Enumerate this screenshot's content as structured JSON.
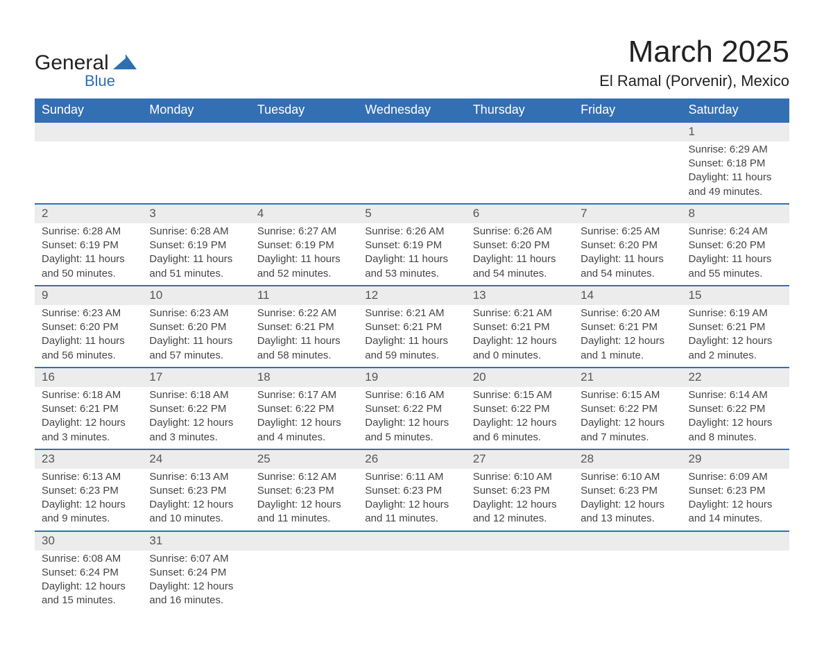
{
  "logo": {
    "text_general": "General",
    "text_blue": "Blue",
    "shape_color": "#2f6eb0"
  },
  "title": "March 2025",
  "location": "El Ramal (Porvenir), Mexico",
  "colors": {
    "header_bg": "#336fb3",
    "header_text": "#ffffff",
    "daynum_bg": "#ececec",
    "divider": "#336fb3",
    "body_text": "#444444",
    "page_bg": "#ffffff"
  },
  "weekdays": [
    "Sunday",
    "Monday",
    "Tuesday",
    "Wednesday",
    "Thursday",
    "Friday",
    "Saturday"
  ],
  "weeks": [
    [
      null,
      null,
      null,
      null,
      null,
      null,
      {
        "n": "1",
        "sr": "Sunrise: 6:29 AM",
        "ss": "Sunset: 6:18 PM",
        "dl1": "Daylight: 11 hours",
        "dl2": "and 49 minutes."
      }
    ],
    [
      {
        "n": "2",
        "sr": "Sunrise: 6:28 AM",
        "ss": "Sunset: 6:19 PM",
        "dl1": "Daylight: 11 hours",
        "dl2": "and 50 minutes."
      },
      {
        "n": "3",
        "sr": "Sunrise: 6:28 AM",
        "ss": "Sunset: 6:19 PM",
        "dl1": "Daylight: 11 hours",
        "dl2": "and 51 minutes."
      },
      {
        "n": "4",
        "sr": "Sunrise: 6:27 AM",
        "ss": "Sunset: 6:19 PM",
        "dl1": "Daylight: 11 hours",
        "dl2": "and 52 minutes."
      },
      {
        "n": "5",
        "sr": "Sunrise: 6:26 AM",
        "ss": "Sunset: 6:19 PM",
        "dl1": "Daylight: 11 hours",
        "dl2": "and 53 minutes."
      },
      {
        "n": "6",
        "sr": "Sunrise: 6:26 AM",
        "ss": "Sunset: 6:20 PM",
        "dl1": "Daylight: 11 hours",
        "dl2": "and 54 minutes."
      },
      {
        "n": "7",
        "sr": "Sunrise: 6:25 AM",
        "ss": "Sunset: 6:20 PM",
        "dl1": "Daylight: 11 hours",
        "dl2": "and 54 minutes."
      },
      {
        "n": "8",
        "sr": "Sunrise: 6:24 AM",
        "ss": "Sunset: 6:20 PM",
        "dl1": "Daylight: 11 hours",
        "dl2": "and 55 minutes."
      }
    ],
    [
      {
        "n": "9",
        "sr": "Sunrise: 6:23 AM",
        "ss": "Sunset: 6:20 PM",
        "dl1": "Daylight: 11 hours",
        "dl2": "and 56 minutes."
      },
      {
        "n": "10",
        "sr": "Sunrise: 6:23 AM",
        "ss": "Sunset: 6:20 PM",
        "dl1": "Daylight: 11 hours",
        "dl2": "and 57 minutes."
      },
      {
        "n": "11",
        "sr": "Sunrise: 6:22 AM",
        "ss": "Sunset: 6:21 PM",
        "dl1": "Daylight: 11 hours",
        "dl2": "and 58 minutes."
      },
      {
        "n": "12",
        "sr": "Sunrise: 6:21 AM",
        "ss": "Sunset: 6:21 PM",
        "dl1": "Daylight: 11 hours",
        "dl2": "and 59 minutes."
      },
      {
        "n": "13",
        "sr": "Sunrise: 6:21 AM",
        "ss": "Sunset: 6:21 PM",
        "dl1": "Daylight: 12 hours",
        "dl2": "and 0 minutes."
      },
      {
        "n": "14",
        "sr": "Sunrise: 6:20 AM",
        "ss": "Sunset: 6:21 PM",
        "dl1": "Daylight: 12 hours",
        "dl2": "and 1 minute."
      },
      {
        "n": "15",
        "sr": "Sunrise: 6:19 AM",
        "ss": "Sunset: 6:21 PM",
        "dl1": "Daylight: 12 hours",
        "dl2": "and 2 minutes."
      }
    ],
    [
      {
        "n": "16",
        "sr": "Sunrise: 6:18 AM",
        "ss": "Sunset: 6:21 PM",
        "dl1": "Daylight: 12 hours",
        "dl2": "and 3 minutes."
      },
      {
        "n": "17",
        "sr": "Sunrise: 6:18 AM",
        "ss": "Sunset: 6:22 PM",
        "dl1": "Daylight: 12 hours",
        "dl2": "and 3 minutes."
      },
      {
        "n": "18",
        "sr": "Sunrise: 6:17 AM",
        "ss": "Sunset: 6:22 PM",
        "dl1": "Daylight: 12 hours",
        "dl2": "and 4 minutes."
      },
      {
        "n": "19",
        "sr": "Sunrise: 6:16 AM",
        "ss": "Sunset: 6:22 PM",
        "dl1": "Daylight: 12 hours",
        "dl2": "and 5 minutes."
      },
      {
        "n": "20",
        "sr": "Sunrise: 6:15 AM",
        "ss": "Sunset: 6:22 PM",
        "dl1": "Daylight: 12 hours",
        "dl2": "and 6 minutes."
      },
      {
        "n": "21",
        "sr": "Sunrise: 6:15 AM",
        "ss": "Sunset: 6:22 PM",
        "dl1": "Daylight: 12 hours",
        "dl2": "and 7 minutes."
      },
      {
        "n": "22",
        "sr": "Sunrise: 6:14 AM",
        "ss": "Sunset: 6:22 PM",
        "dl1": "Daylight: 12 hours",
        "dl2": "and 8 minutes."
      }
    ],
    [
      {
        "n": "23",
        "sr": "Sunrise: 6:13 AM",
        "ss": "Sunset: 6:23 PM",
        "dl1": "Daylight: 12 hours",
        "dl2": "and 9 minutes."
      },
      {
        "n": "24",
        "sr": "Sunrise: 6:13 AM",
        "ss": "Sunset: 6:23 PM",
        "dl1": "Daylight: 12 hours",
        "dl2": "and 10 minutes."
      },
      {
        "n": "25",
        "sr": "Sunrise: 6:12 AM",
        "ss": "Sunset: 6:23 PM",
        "dl1": "Daylight: 12 hours",
        "dl2": "and 11 minutes."
      },
      {
        "n": "26",
        "sr": "Sunrise: 6:11 AM",
        "ss": "Sunset: 6:23 PM",
        "dl1": "Daylight: 12 hours",
        "dl2": "and 11 minutes."
      },
      {
        "n": "27",
        "sr": "Sunrise: 6:10 AM",
        "ss": "Sunset: 6:23 PM",
        "dl1": "Daylight: 12 hours",
        "dl2": "and 12 minutes."
      },
      {
        "n": "28",
        "sr": "Sunrise: 6:10 AM",
        "ss": "Sunset: 6:23 PM",
        "dl1": "Daylight: 12 hours",
        "dl2": "and 13 minutes."
      },
      {
        "n": "29",
        "sr": "Sunrise: 6:09 AM",
        "ss": "Sunset: 6:23 PM",
        "dl1": "Daylight: 12 hours",
        "dl2": "and 14 minutes."
      }
    ],
    [
      {
        "n": "30",
        "sr": "Sunrise: 6:08 AM",
        "ss": "Sunset: 6:24 PM",
        "dl1": "Daylight: 12 hours",
        "dl2": "and 15 minutes."
      },
      {
        "n": "31",
        "sr": "Sunrise: 6:07 AM",
        "ss": "Sunset: 6:24 PM",
        "dl1": "Daylight: 12 hours",
        "dl2": "and 16 minutes."
      },
      null,
      null,
      null,
      null,
      null
    ]
  ]
}
